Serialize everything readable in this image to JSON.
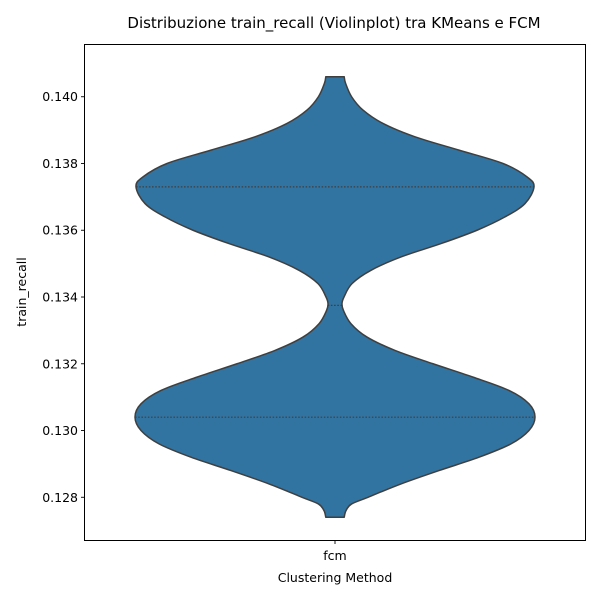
{
  "chart_data": {
    "type": "violin",
    "title": "Distribuzione train_recall (Violinplot) tra KMeans e FCM",
    "xlabel": "Clustering Method",
    "ylabel": "train_recall",
    "categories": [
      "fcm"
    ],
    "ylim": [
      0.12672,
      0.14155
    ],
    "yticks": [
      0.128,
      0.13,
      0.132,
      0.134,
      0.136,
      0.138,
      0.14
    ],
    "ytick_labels": [
      "0.128",
      "0.130",
      "0.132",
      "0.134",
      "0.136",
      "0.138",
      "0.140"
    ],
    "grid": false,
    "violins": [
      {
        "category": "fcm",
        "color": "#3274a1",
        "edge_color": "#3f3f3f",
        "range": [
          0.1274,
          0.1406
        ],
        "quartiles": [
          0.1304,
          0.13375,
          0.1373
        ],
        "profile": [
          [
            0.1274,
            0.046
          ],
          [
            0.1276,
            0.055
          ],
          [
            0.1278,
            0.083
          ],
          [
            0.128,
            0.165
          ],
          [
            0.1284,
            0.33
          ],
          [
            0.1288,
            0.52
          ],
          [
            0.1292,
            0.72
          ],
          [
            0.1296,
            0.88
          ],
          [
            0.13,
            0.97
          ],
          [
            0.1304,
            1.0
          ],
          [
            0.1308,
            0.97
          ],
          [
            0.1312,
            0.87
          ],
          [
            0.1316,
            0.69
          ],
          [
            0.132,
            0.49
          ],
          [
            0.1324,
            0.3
          ],
          [
            0.1328,
            0.16
          ],
          [
            0.1332,
            0.08
          ],
          [
            0.1336,
            0.042
          ],
          [
            0.1338,
            0.035
          ],
          [
            0.134,
            0.045
          ],
          [
            0.1344,
            0.085
          ],
          [
            0.1348,
            0.18
          ],
          [
            0.1352,
            0.33
          ],
          [
            0.1356,
            0.53
          ],
          [
            0.136,
            0.71
          ],
          [
            0.1364,
            0.85
          ],
          [
            0.1368,
            0.95
          ],
          [
            0.1373,
            0.995
          ],
          [
            0.1376,
            0.96
          ],
          [
            0.138,
            0.84
          ],
          [
            0.1384,
            0.62
          ],
          [
            0.1388,
            0.4
          ],
          [
            0.1392,
            0.24
          ],
          [
            0.1396,
            0.14
          ],
          [
            0.14,
            0.083
          ],
          [
            0.1404,
            0.053
          ],
          [
            0.1406,
            0.046
          ]
        ]
      }
    ]
  }
}
